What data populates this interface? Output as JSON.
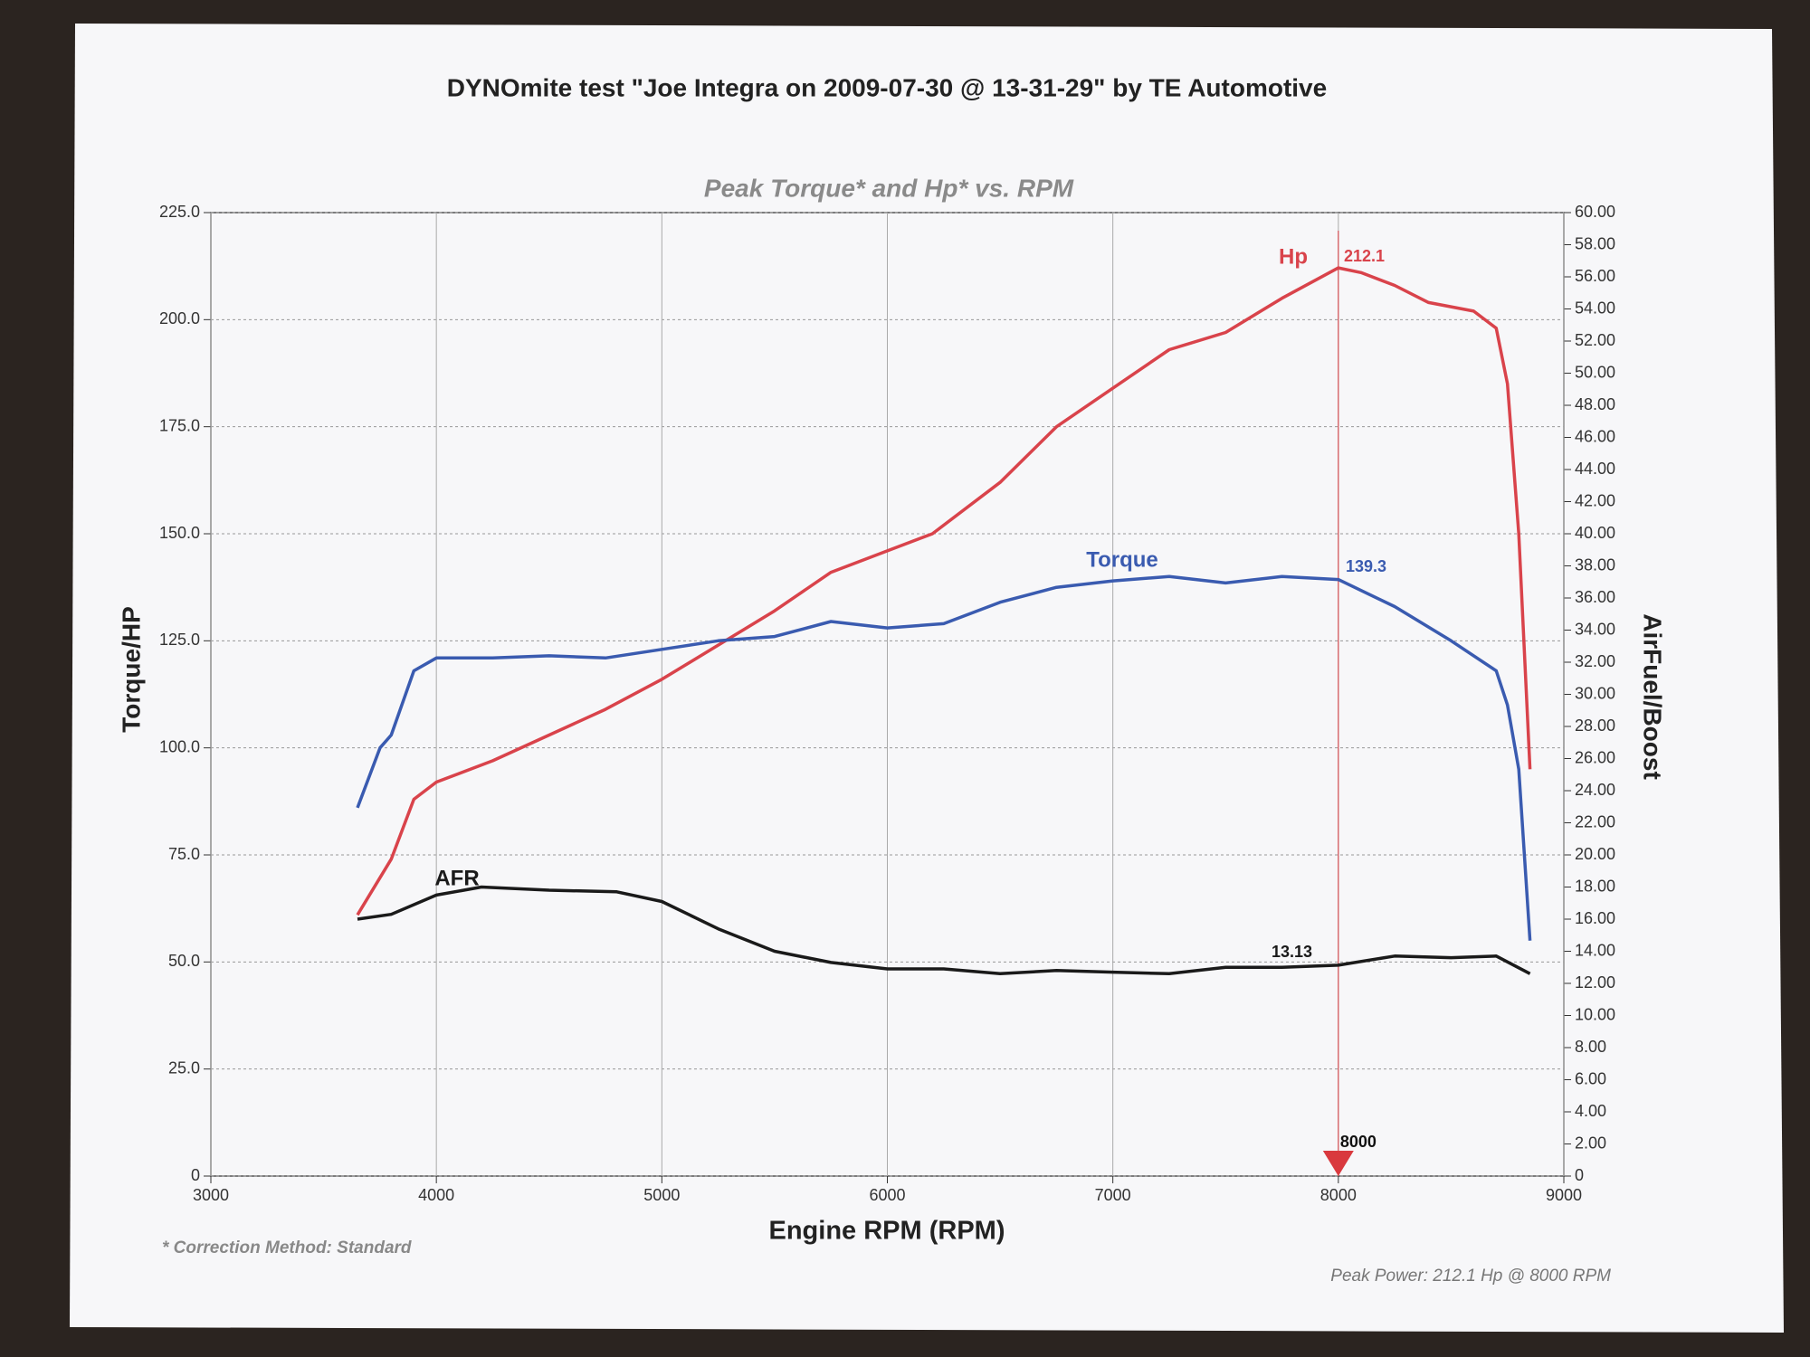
{
  "chart_data": {
    "type": "line",
    "title": "DYNOmite test \"Joe Integra  on 2009-07-30 @ 13-31-29\" by TE Automotive",
    "subtitle": "Peak Torque* and Hp* vs. RPM",
    "xlabel": "Engine RPM (RPM)",
    "ylabel": "Torque/HP",
    "y2label": "AirFuel/Boost",
    "footnote": "* Correction Method: Standard",
    "summary": "Peak Power: 212.1 Hp @ 8000 RPM",
    "cursor": 8000,
    "cursor_color": "#d9393e",
    "grid": true,
    "xlim": [
      3000,
      9000
    ],
    "xticks": [
      3000,
      4000,
      5000,
      6000,
      7000,
      8000,
      9000
    ],
    "ylim": [
      0,
      225
    ],
    "yticks": [
      0,
      {
        "value": 25,
        "label": "25.0"
      },
      {
        "value": 50,
        "label": "50.0"
      },
      {
        "value": 75,
        "label": "75.0"
      },
      {
        "value": 100,
        "label": "100.0"
      },
      {
        "value": 125,
        "label": "125.0"
      },
      {
        "value": 150,
        "label": "150.0"
      },
      {
        "value": 175,
        "label": "175.0"
      },
      {
        "value": 200,
        "label": "200.0"
      },
      {
        "value": 225,
        "label": "225.0"
      }
    ],
    "y2lim": [
      0,
      60
    ],
    "y2ticks": [
      0,
      {
        "value": 2,
        "label": "2.00"
      },
      {
        "value": 4,
        "label": "4.00"
      },
      {
        "value": 6,
        "label": "6.00"
      },
      {
        "value": 8,
        "label": "8.00"
      },
      {
        "value": 10,
        "label": "10.00"
      },
      {
        "value": 12,
        "label": "12.00"
      },
      {
        "value": 14,
        "label": "14.00"
      },
      {
        "value": 16,
        "label": "16.00"
      },
      {
        "value": 18,
        "label": "18.00"
      },
      {
        "value": 20,
        "label": "20.00"
      },
      {
        "value": 22,
        "label": "22.00"
      },
      {
        "value": 24,
        "label": "24.00"
      },
      {
        "value": 26,
        "label": "26.00"
      },
      {
        "value": 28,
        "label": "28.00"
      },
      {
        "value": 30,
        "label": "30.00"
      },
      {
        "value": 32,
        "label": "32.00"
      },
      {
        "value": 34,
        "label": "34.00"
      },
      {
        "value": 36,
        "label": "36.00"
      },
      {
        "value": 38,
        "label": "38.00"
      },
      {
        "value": 40,
        "label": "40.00"
      },
      {
        "value": 42,
        "label": "42.00"
      },
      {
        "value": 44,
        "label": "44.00"
      },
      {
        "value": 46,
        "label": "46.00"
      },
      {
        "value": 48,
        "label": "48.00"
      },
      {
        "value": 50,
        "label": "50.00"
      },
      {
        "value": 52,
        "label": "52.00"
      },
      {
        "value": 54,
        "label": "54.00"
      },
      {
        "value": 56,
        "label": "56.00"
      },
      {
        "value": 58,
        "label": "58.00"
      },
      {
        "value": 60,
        "label": "60.00"
      }
    ],
    "series": [
      {
        "name": "Hp",
        "color": "#d9434b",
        "cursor_value": 212.1,
        "x": [
          3650,
          3800,
          3900,
          4000,
          4250,
          4500,
          4750,
          5000,
          5250,
          5500,
          5750,
          6000,
          6200,
          6500,
          6750,
          7000,
          7250,
          7500,
          7750,
          8000,
          8100,
          8250,
          8400,
          8600,
          8700,
          8750,
          8800,
          8850
        ],
        "values": [
          61,
          74,
          88,
          92,
          97,
          103,
          109,
          116,
          124,
          132,
          141,
          146,
          150,
          162,
          175,
          184,
          193,
          197,
          205,
          212.1,
          211,
          208,
          204,
          202,
          198,
          185,
          150,
          95
        ]
      },
      {
        "name": "Torque",
        "color": "#3a5bb0",
        "cursor_value": 139.3,
        "x": [
          3650,
          3750,
          3800,
          3900,
          4000,
          4250,
          4500,
          4750,
          5000,
          5250,
          5500,
          5750,
          6000,
          6250,
          6500,
          6750,
          7000,
          7250,
          7500,
          7750,
          8000,
          8250,
          8500,
          8700,
          8750,
          8800,
          8850
        ],
        "values": [
          86,
          100,
          103,
          118,
          121,
          121,
          121.5,
          121,
          123,
          125,
          126,
          129.5,
          128,
          129,
          134,
          137.5,
          139,
          140,
          138.5,
          140,
          139.3,
          133,
          125,
          118,
          110,
          95,
          55
        ]
      },
      {
        "name": "AFR",
        "color": "#1a1a1a",
        "axis": "y2",
        "cursor_value": 13.13,
        "x": [
          3650,
          3800,
          4000,
          4200,
          4500,
          4800,
          5000,
          5250,
          5500,
          5750,
          6000,
          6250,
          6500,
          6750,
          7000,
          7250,
          7500,
          7750,
          8000,
          8250,
          8500,
          8700,
          8850
        ],
        "values": [
          16,
          16.3,
          17.5,
          18,
          17.8,
          17.7,
          17.1,
          15.4,
          14,
          13.3,
          12.9,
          12.9,
          12.6,
          12.8,
          12.7,
          12.6,
          13,
          13,
          13.13,
          13.7,
          13.6,
          13.7,
          12.6
        ]
      }
    ]
  }
}
